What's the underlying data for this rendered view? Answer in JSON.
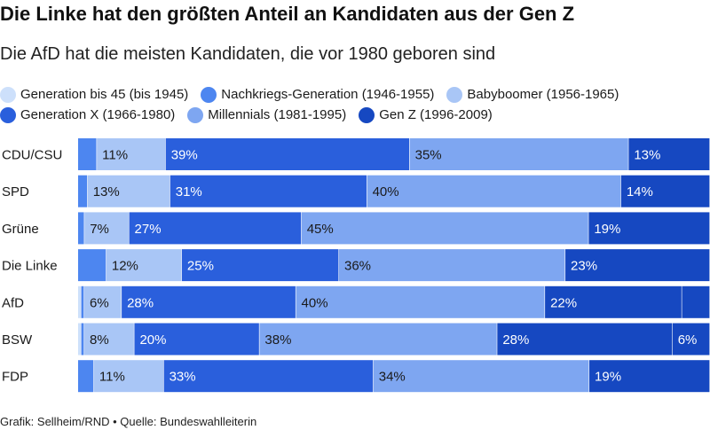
{
  "title": "Die Linke hat den größten Anteil an Kandidaten aus der Gen Z",
  "subtitle": "Die AfD hat die meisten Kandidaten, die vor 1980 geboren sind",
  "footer": "Grafik: Sellheim/RND • Quelle: Bundeswahlleiterin",
  "colors": {
    "Generation bis 45 (bis 1945)": "#cde0fb",
    "Nachkriegs-Generation (1946-1955)": "#4d86f0",
    "Babyboomer (1956-1965)": "#a9c6f6",
    "Generation X (1966-1980)": "#2a5fdc",
    "Millennials (1981-1995)": "#7ea6f1",
    "Gen Z (1996-2009)": "#1648c1"
  },
  "chart_data": {
    "type": "bar",
    "orientation": "horizontal",
    "stacked": true,
    "normalized_percent": true,
    "categories": [
      "CDU/CSU",
      "SPD",
      "Grüne",
      "Die Linke",
      "AfD",
      "BSW",
      "FDP"
    ],
    "series": [
      {
        "name": "Generation bis 45 (bis 1945)",
        "values": [
          0,
          0,
          0,
          0,
          0.5,
          0.5,
          0
        ]
      },
      {
        "name": "Nachkriegs-Generation (1946-1955)",
        "values": [
          3,
          1.5,
          1,
          4.5,
          0.5,
          0.5,
          2.5
        ]
      },
      {
        "name": "Babyboomer (1956-1965)",
        "values": [
          11,
          13,
          7,
          12,
          6,
          8,
          11
        ]
      },
      {
        "name": "Generation X (1966-1980)",
        "values": [
          39,
          31,
          27,
          25,
          28,
          20,
          33
        ]
      },
      {
        "name": "Millennials (1981-1995)",
        "values": [
          35,
          40,
          45,
          36,
          40,
          38,
          34
        ]
      },
      {
        "name": "Gen Z (1996-2009)",
        "values": [
          13,
          14,
          19,
          23,
          22,
          28,
          19
        ]
      }
    ],
    "extra_segment_series": "Gen Z (1996-2009)",
    "labels": {
      "CDU/CSU": [
        "",
        "",
        "11%",
        "39%",
        "35%",
        "13%"
      ],
      "SPD": [
        "",
        "",
        "13%",
        "31%",
        "40%",
        "14%"
      ],
      "Grüne": [
        "",
        "",
        "7%",
        "27%",
        "45%",
        "19%"
      ],
      "Die Linke": [
        "",
        "",
        "12%",
        "25%",
        "36%",
        "23%"
      ],
      "AfD": [
        "",
        "",
        "6%",
        "28%",
        "40%",
        "22%"
      ],
      "BSW": [
        "",
        "",
        "8%",
        "20%",
        "38%",
        "28%"
      ],
      "FDP": [
        "",
        "",
        "11%",
        "33%",
        "34%",
        "19%"
      ]
    },
    "trailing_segments": {
      "AfD": {
        "value": 4.5,
        "label": ""
      },
      "BSW": {
        "value": 6,
        "label": "6%"
      }
    },
    "xlim": [
      0,
      100
    ],
    "legend_position": "top"
  }
}
